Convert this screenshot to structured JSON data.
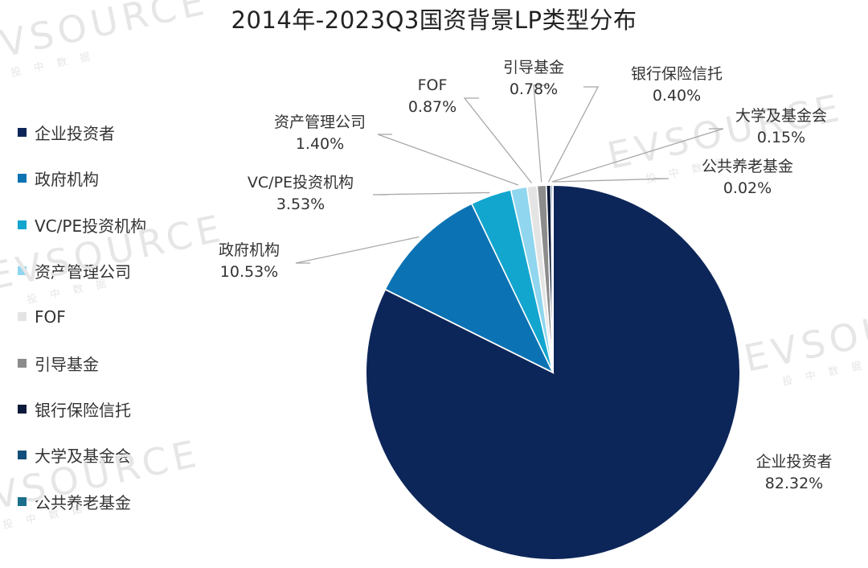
{
  "chart_data": {
    "type": "pie",
    "title": "2014年-2023Q3国资背景LP类型分布",
    "legend_position": "left",
    "slices": [
      {
        "label": "企业投资者",
        "value": 82.32,
        "display": "82.32%",
        "color": "#0d2659"
      },
      {
        "label": "政府机构",
        "value": 10.53,
        "display": "10.53%",
        "color": "#0b72b3"
      },
      {
        "label": "VC/PE投资机构",
        "value": 3.53,
        "display": "3.53%",
        "color": "#12a6cf"
      },
      {
        "label": "资产管理公司",
        "value": 1.4,
        "display": "1.40%",
        "color": "#8fd6ee"
      },
      {
        "label": "FOF",
        "value": 0.87,
        "display": "0.87%",
        "color": "#e4e4e4"
      },
      {
        "label": "引导基金",
        "value": 0.78,
        "display": "0.78%",
        "color": "#8c8c8c"
      },
      {
        "label": "银行保险信托",
        "value": 0.4,
        "display": "0.40%",
        "color": "#0b1a3a"
      },
      {
        "label": "大学及基金会",
        "value": 0.15,
        "display": "0.15%",
        "color": "#134f7a"
      },
      {
        "label": "公共养老基金",
        "value": 0.02,
        "display": "0.02%",
        "color": "#1a6f8a"
      }
    ]
  },
  "watermark": {
    "brand": "EVSOURCE",
    "sub": "投 中 数 据"
  }
}
